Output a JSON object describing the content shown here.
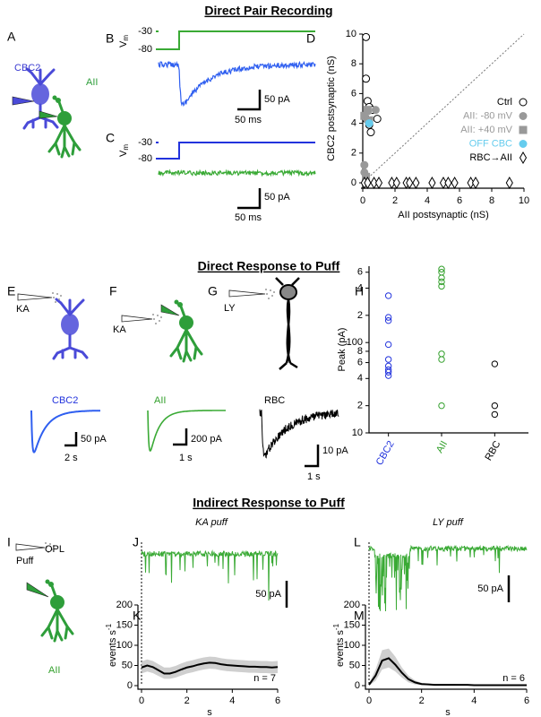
{
  "sections": [
    "Direct Pair Recording",
    "Direct Response to Puff",
    "Indirect Response to Puff"
  ],
  "panel_letters": [
    "A",
    "B",
    "C",
    "D",
    "E",
    "F",
    "G",
    "H",
    "I",
    "J",
    "K",
    "L",
    "M"
  ],
  "pair": {
    "cells": [
      "CBC2",
      "AII"
    ],
    "vm": "V",
    "vm_sub": "m",
    "b_vm": [
      "-30",
      "-80"
    ],
    "b_scale": [
      "50 pA",
      "50 ms"
    ],
    "c_vm": [
      "-30",
      "-80"
    ],
    "c_scale": [
      "50 pA",
      "50 ms"
    ]
  },
  "puff": {
    "e_drug": "KA",
    "e_cell": "CBC2",
    "e_scale": [
      "50 pA",
      "2 s"
    ],
    "f_drug": "KA",
    "f_cell": "AII",
    "f_scale": [
      "200 pA",
      "1 s"
    ],
    "g_drug": "LY",
    "g_cell": "RBC",
    "g_scale": [
      "10 pA",
      "1 s"
    ]
  },
  "indirect": {
    "puff": "Puff",
    "opl": "OPL",
    "cell": "AII",
    "j_title": "KA puff",
    "l_title": "LY puff",
    "j_scale": "50 pA",
    "l_scale": "50 pA"
  },
  "chart_data": [
    {
      "type": "scatter",
      "xlabel": "AII postsynaptic (nS)",
      "ylabel": "CBC2 postsynaptic (nS)",
      "xlim": [
        0,
        10
      ],
      "ylim": [
        0,
        10
      ],
      "xticks": [
        0,
        2,
        4,
        6,
        8,
        10
      ],
      "yticks": [
        0,
        2,
        4,
        6,
        8,
        10
      ],
      "identity_line": true,
      "series": [
        {
          "name": "Ctrl",
          "color": "#000000",
          "marker": "circle-open",
          "x": [
            0.2,
            0.2,
            0.3,
            0.4,
            0.6,
            0.9,
            0.2,
            0.4,
            0.5
          ],
          "values": [
            9.8,
            7.0,
            5.5,
            5.1,
            4.9,
            4.3,
            4.3,
            3.9,
            3.4
          ]
        },
        {
          "name": "AII: -80 mV",
          "color": "#999999",
          "marker": "circle",
          "x": [
            0.1,
            0.1,
            0.3,
            0.3,
            0.8
          ],
          "values": [
            1.2,
            0.7,
            4.8,
            4.2,
            4.9
          ]
        },
        {
          "name": "AII: +40 mV",
          "color": "#999999",
          "marker": "square",
          "x": [
            0.2,
            0.3,
            0.1,
            0.4
          ],
          "values": [
            0.4,
            4.9,
            4.5,
            4.2
          ]
        },
        {
          "name": "OFF CBC",
          "color": "#66ccee",
          "marker": "circle",
          "x": [
            0.4
          ],
          "values": [
            4.0
          ]
        },
        {
          "name": "RBC→AII",
          "color": "#000000",
          "marker": "diamond-open",
          "x": [
            0.1,
            0.3,
            0.7,
            1.0,
            1.8,
            2.1,
            2.7,
            2.9,
            3.3,
            4.3,
            5.0,
            5.3,
            5.7,
            6.7,
            7.0,
            9.1
          ],
          "values": [
            0,
            0,
            0,
            0,
            0,
            0,
            0,
            0,
            0,
            0,
            0,
            0,
            0,
            0,
            0,
            0
          ]
        }
      ]
    },
    {
      "type": "strip",
      "ylabel": "Peak (pA)",
      "log": true,
      "ylim": [
        10,
        700
      ],
      "yticks": [
        10,
        {
          "value": 20,
          "label": "2"
        },
        {
          "value": 40,
          "label": "4"
        },
        {
          "value": 60,
          "label": "6"
        },
        {
          "value": 80,
          "label": "8"
        },
        100,
        {
          "value": 200,
          "label": "2"
        },
        {
          "value": 400,
          "label": "4"
        },
        {
          "value": 600,
          "label": "6"
        }
      ],
      "categories": [
        "CBC2",
        "AII",
        "RBC"
      ],
      "colors": [
        "#2233dd",
        "#33a02c",
        "#000000"
      ],
      "values": [
        [
          330,
          190,
          175,
          95,
          65,
          55,
          50,
          47,
          43
        ],
        [
          650,
          600,
          520,
          470,
          420,
          75,
          65,
          20
        ],
        [
          58,
          20,
          16
        ]
      ]
    },
    {
      "type": "line",
      "xlabel": "s",
      "ylabel": "events s",
      "ylabel_sup": "-1",
      "annotation": "n = 7",
      "color": "#000000",
      "band_color": "#bbbbbb",
      "xlim": [
        0,
        6
      ],
      "ylim": [
        0,
        200
      ],
      "xticks": [
        0,
        2,
        4,
        6
      ],
      "yticks": [
        0,
        50,
        100,
        150,
        200
      ],
      "x": [
        0,
        0.25,
        0.5,
        0.75,
        1,
        1.25,
        1.5,
        1.75,
        2,
        2.25,
        2.5,
        2.75,
        3,
        3.25,
        3.5,
        3.75,
        4,
        4.25,
        4.5,
        4.75,
        5,
        5.25,
        5.5,
        5.75,
        6
      ],
      "values": [
        45,
        50,
        46,
        38,
        30,
        30,
        34,
        40,
        45,
        48,
        52,
        55,
        57,
        56,
        53,
        51,
        50,
        49,
        48,
        47,
        47,
        46,
        46,
        45,
        46
      ],
      "lower": [
        30,
        35,
        31,
        24,
        17,
        17,
        20,
        25,
        30,
        33,
        37,
        40,
        42,
        41,
        38,
        36,
        35,
        34,
        33,
        32,
        32,
        31,
        31,
        30,
        31
      ],
      "upper": [
        60,
        65,
        61,
        53,
        45,
        45,
        49,
        55,
        60,
        63,
        67,
        70,
        72,
        71,
        68,
        66,
        65,
        64,
        63,
        62,
        62,
        61,
        61,
        60,
        61
      ]
    },
    {
      "type": "line",
      "xlabel": "s",
      "ylabel": "events s",
      "ylabel_sup": "-1",
      "annotation": "n = 6",
      "color": "#000000",
      "band_color": "#bbbbbb",
      "xlim": [
        0,
        6
      ],
      "ylim": [
        0,
        200
      ],
      "xticks": [
        0,
        2,
        4,
        6
      ],
      "yticks": [
        0,
        50,
        100,
        150,
        200
      ],
      "x": [
        0,
        0.25,
        0.5,
        0.75,
        1,
        1.25,
        1.5,
        1.75,
        2,
        2.25,
        2.5,
        2.75,
        3,
        3.25,
        3.5,
        3.75,
        4,
        4.25,
        4.5,
        4.75,
        5,
        5.25,
        5.5,
        5.75,
        6
      ],
      "values": [
        2,
        25,
        62,
        68,
        52,
        32,
        16,
        8,
        4,
        3,
        2,
        2,
        2,
        2,
        2,
        2,
        1,
        1,
        1,
        1,
        1,
        1,
        1,
        1,
        1
      ],
      "lower": [
        0,
        12,
        40,
        45,
        35,
        20,
        8,
        3,
        1,
        1,
        1,
        1,
        1,
        1,
        1,
        1,
        0,
        0,
        0,
        0,
        0,
        0,
        0,
        0,
        0
      ],
      "upper": [
        5,
        40,
        88,
        92,
        72,
        45,
        25,
        13,
        7,
        5,
        4,
        4,
        4,
        4,
        3,
        3,
        2,
        2,
        2,
        2,
        2,
        2,
        2,
        2,
        2
      ]
    }
  ]
}
